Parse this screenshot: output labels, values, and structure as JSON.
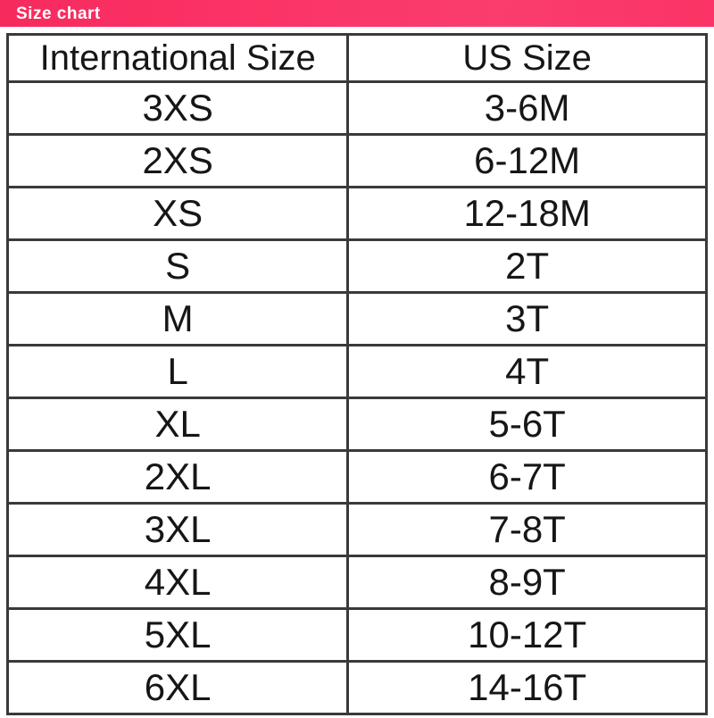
{
  "banner": {
    "label": "Size chart",
    "bg_color": "#fb3366",
    "text_color": "#ffffff"
  },
  "colors": {
    "table_border": "#3a3a3a",
    "table_text": "#161616",
    "page_bg": "#ffffff"
  },
  "chart_data": {
    "type": "table",
    "title": "Size chart",
    "columns": [
      "International Size",
      "US Size"
    ],
    "rows": [
      [
        "3XS",
        "3-6M"
      ],
      [
        "2XS",
        "6-12M"
      ],
      [
        "XS",
        "12-18M"
      ],
      [
        "S",
        "2T"
      ],
      [
        "M",
        "3T"
      ],
      [
        "L",
        "4T"
      ],
      [
        "XL",
        "5-6T"
      ],
      [
        "2XL",
        "6-7T"
      ],
      [
        "3XL",
        "7-8T"
      ],
      [
        "4XL",
        "8-9T"
      ],
      [
        "5XL",
        "10-12T"
      ],
      [
        "6XL",
        "14-16T"
      ]
    ]
  }
}
